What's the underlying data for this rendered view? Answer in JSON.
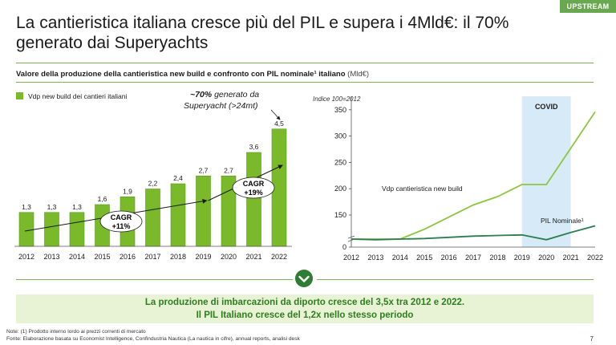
{
  "header": {
    "tag": "UPSTREAM",
    "title": "La cantieristica italiana cresce più del PIL e supera i 4Mld€: il 70% generato dai Superyachts"
  },
  "subtitle": {
    "bold": "Valore della produzione della cantieristica new build e confronto con PIL nominale¹ italiano",
    "unit": "(Mld€)"
  },
  "colors": {
    "accent": "#6aa84f",
    "bar": "#7ab929",
    "bar_dark": "#5a9a1f",
    "pil_line": "#2e7d4e",
    "covid_band": "#d6ebf7"
  },
  "chart_data": [
    {
      "type": "bar",
      "legend": "Vdp new build dei cantieri italiani",
      "categories": [
        "2012",
        "2013",
        "2014",
        "2015",
        "2016",
        "2017",
        "2018",
        "2019",
        "2020",
        "2021",
        "2022"
      ],
      "values": [
        1.3,
        1.3,
        1.3,
        1.6,
        1.9,
        2.2,
        2.4,
        2.7,
        2.7,
        3.6,
        4.5
      ],
      "value_labels": [
        "1,3",
        "1,3",
        "1,3",
        "1,6",
        "1,9",
        "2,2",
        "2,4",
        "2,7",
        "2,7",
        "3,6",
        "4,5"
      ],
      "annotations": {
        "cagr1": [
          "CAGR",
          "+11%"
        ],
        "cagr2": [
          "CAGR",
          "+19%"
        ],
        "superyacht_bold": "~70%",
        "superyacht_text": [
          " generato da",
          "Superyacht (>24mt)"
        ]
      }
    },
    {
      "type": "line",
      "ylabel": "Indice 100=2012",
      "x": [
        "2012",
        "2013",
        "2014",
        "2015",
        "2016",
        "2017",
        "2018",
        "2019",
        "2020",
        "2021",
        "2022"
      ],
      "yticks": [
        0,
        150,
        200,
        250,
        300,
        350
      ],
      "axis_break": true,
      "band": {
        "label": "COVID",
        "from": "2019",
        "to": "2021"
      },
      "series": [
        {
          "name": "Vdp cantieristica new build",
          "values": [
            100,
            100,
            100,
            123,
            146,
            169,
            185,
            208,
            208,
            277,
            346
          ]
        },
        {
          "name": "PIL Nominale¹",
          "values": [
            100,
            99,
            100,
            101,
            103,
            105,
            106,
            107,
            99,
            111,
            122
          ]
        }
      ]
    }
  ],
  "conclusion": {
    "line1": "La produzione di imbarcazioni da diporto cresce del 3,5x tra 2012 e 2022.",
    "line2": "Il PIL Italiano cresce del 1,2x nello stesso periodo"
  },
  "footer": {
    "note": "Note: (1) Prodotto interno lordo ai prezzi correnti di mercato",
    "source": "Fonte: Elaborazione basata su Economist Intelligence, Confindustria Nautica (La nautica in cifre), annual reports, analisi desk",
    "page": "7"
  }
}
